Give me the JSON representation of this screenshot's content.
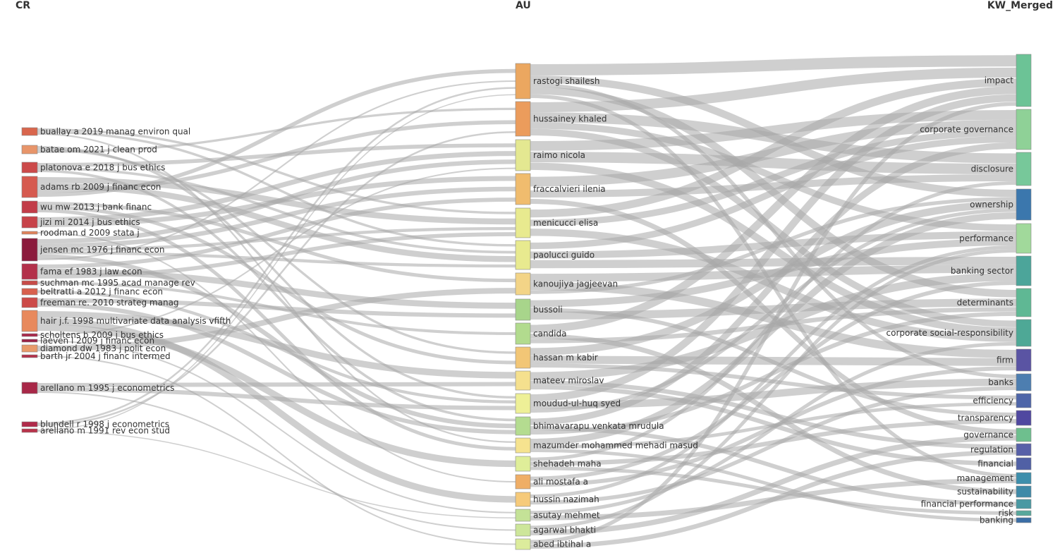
{
  "headers": {
    "cr": "CR",
    "au": "AU",
    "kw": "KW_Merged"
  },
  "colors": {
    "link": "#a8a8a8",
    "node_border": "#888888"
  },
  "cr": [
    {
      "label": "buallay a 2019 manag environ qual",
      "color": "#d9664d"
    },
    {
      "label": "batae om 2021 j clean prod",
      "color": "#e8956a"
    },
    {
      "label": "platonova e 2018 j bus ethics",
      "color": "#cc4a4a"
    },
    {
      "label": "adams rb 2009 j financ econ",
      "color": "#d65a4f"
    },
    {
      "label": "wu mw 2013 j bank financ",
      "color": "#c23c48"
    },
    {
      "label": "jizi mi 2014 j bus ethics",
      "color": "#c74349"
    },
    {
      "label": "roodman d 2009 stata j",
      "color": "#e0825a"
    },
    {
      "label": "jensen mc 1976 j financ econ",
      "color": "#8b1a3c"
    },
    {
      "label": "fama ef 1983 j law econ",
      "color": "#b3304a"
    },
    {
      "label": "suchman mc 1995 acad manage rev",
      "color": "#c74b48"
    },
    {
      "label": "beltratti a 2012 j financ econ",
      "color": "#d8604d"
    },
    {
      "label": "freeman re. 2010 strateg manag",
      "color": "#cc4a48"
    },
    {
      "label": "hair j.f. 1998 multivariate data analysis vfifth",
      "color": "#e8895c"
    },
    {
      "label": "scholtens b 2009 j bus ethics",
      "color": "#a8284a"
    },
    {
      "label": "laeven l 2009 j financ econ",
      "color": "#9a2146"
    },
    {
      "label": "diamond dw 1983 j polit econ",
      "color": "#e89a6a"
    },
    {
      "label": "barth jr 2004 j financ intermed",
      "color": "#b3304a"
    },
    {
      "label": "arellano m 1995 j econometrics",
      "color": "#a82848"
    },
    {
      "label": "blundell r 1998 j econometrics",
      "color": "#b02a4a"
    },
    {
      "label": "arellano m 1991 rev econ stud",
      "color": "#b8324a"
    }
  ],
  "au": [
    {
      "label": "rastogi shailesh",
      "color": "#eba760"
    },
    {
      "label": "hussainey khaled",
      "color": "#eb9c5c"
    },
    {
      "label": "raimo nicola",
      "color": "#e4e891"
    },
    {
      "label": "fraccalvieri ilenia",
      "color": "#f0bc6e"
    },
    {
      "label": "menicucci elisa",
      "color": "#e8ea8f"
    },
    {
      "label": "paolucci guido",
      "color": "#e8ea8f"
    },
    {
      "label": "kanoujiya jagjeevan",
      "color": "#f3d487"
    },
    {
      "label": "bussoli",
      "color": "#a8d58b"
    },
    {
      "label": "candida",
      "color": "#b2db8e"
    },
    {
      "label": "hassan m kabir",
      "color": "#f2c676"
    },
    {
      "label": "mateev miroslav",
      "color": "#f5e08e"
    },
    {
      "label": "moudud-ul-huq syed",
      "color": "#eef097"
    },
    {
      "label": "bhimavarapu venkata mrudula",
      "color": "#b4dc90"
    },
    {
      "label": "mazumder mohammed mehadi masud",
      "color": "#f6e38f"
    },
    {
      "label": "shehadeh maha",
      "color": "#dfee99"
    },
    {
      "label": "ali mostafa a",
      "color": "#efae66"
    },
    {
      "label": "hussin nazimah",
      "color": "#f6ca7a"
    },
    {
      "label": "asutay mehmet",
      "color": "#c4e297"
    },
    {
      "label": "agarwal bhakti",
      "color": "#cde69a"
    },
    {
      "label": "abed ibtihal a",
      "color": "#dcec9c"
    }
  ],
  "kw": [
    {
      "label": "impact",
      "color": "#6cc396"
    },
    {
      "label": "corporate governance",
      "color": "#8fd197"
    },
    {
      "label": "disclosure",
      "color": "#77c89a"
    },
    {
      "label": "ownership",
      "color": "#3b77ad"
    },
    {
      "label": "performance",
      "color": "#a1d99b"
    },
    {
      "label": "banking sector",
      "color": "#4ca59a"
    },
    {
      "label": "determinants",
      "color": "#5fb894"
    },
    {
      "label": "corporate social-responsibility",
      "color": "#4ea896"
    },
    {
      "label": "firm",
      "color": "#5a54a3"
    },
    {
      "label": "banks",
      "color": "#4d7eb0"
    },
    {
      "label": "efficiency",
      "color": "#4e65a8"
    },
    {
      "label": "transparency",
      "color": "#5048a0"
    },
    {
      "label": "governance",
      "color": "#6ebf8e"
    },
    {
      "label": "regulation",
      "color": "#5760a8"
    },
    {
      "label": "financial",
      "color": "#5060a5"
    },
    {
      "label": "management",
      "color": "#3d8fac"
    },
    {
      "label": "sustainability",
      "color": "#3f8aa8"
    },
    {
      "label": "financial performance",
      "color": "#4a99a3"
    },
    {
      "label": "risk",
      "color": "#58a89c"
    },
    {
      "label": "banking",
      "color": "#3b6ea6"
    }
  ]
}
